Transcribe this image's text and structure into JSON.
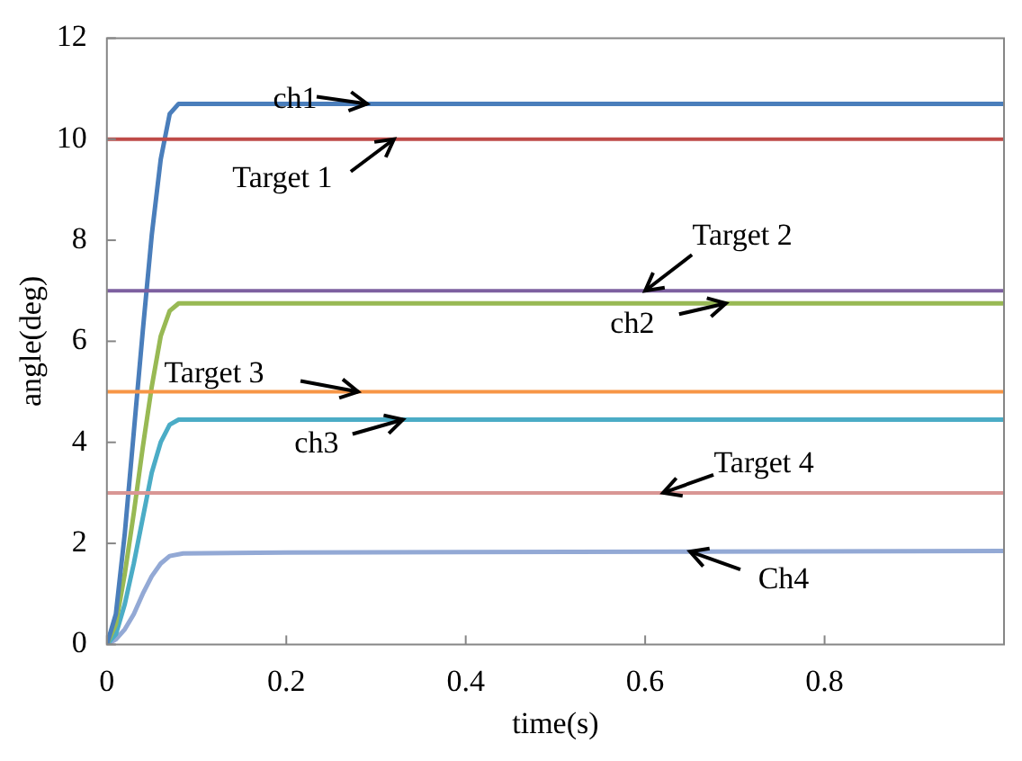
{
  "chart_data": {
    "type": "line",
    "xlabel": "time(s)",
    "ylabel": "angle(deg)",
    "xlim": [
      0,
      1
    ],
    "xticks": [
      0,
      0.2,
      0.4,
      0.6,
      0.8
    ],
    "ylim": [
      0,
      12
    ],
    "yticks": [
      0,
      2,
      4,
      6,
      8,
      10,
      12
    ],
    "grid": false,
    "legend": false,
    "marker": "none",
    "line_style": "solid",
    "series": [
      {
        "name": "ch1",
        "color": "#4a7ebb",
        "x": [
          0,
          0.01,
          0.02,
          0.03,
          0.04,
          0.05,
          0.06,
          0.07,
          0.08,
          0.1,
          1
        ],
        "values": [
          0,
          0.6,
          2.2,
          4.2,
          6.2,
          8.1,
          9.6,
          10.5,
          10.7,
          10.7,
          10.7
        ]
      },
      {
        "name": "ch2",
        "color": "#98b954",
        "x": [
          0,
          0.01,
          0.02,
          0.03,
          0.04,
          0.05,
          0.06,
          0.07,
          0.08,
          0.1,
          1
        ],
        "values": [
          0,
          0.4,
          1.4,
          2.6,
          3.9,
          5.1,
          6.1,
          6.6,
          6.75,
          6.75,
          6.75
        ]
      },
      {
        "name": "ch3",
        "color": "#4bacc6",
        "x": [
          0,
          0.01,
          0.02,
          0.03,
          0.04,
          0.05,
          0.06,
          0.07,
          0.08,
          0.1,
          1
        ],
        "values": [
          0,
          0.2,
          0.8,
          1.6,
          2.5,
          3.4,
          4.0,
          4.35,
          4.45,
          4.45,
          4.45
        ]
      },
      {
        "name": "Ch4",
        "color": "#93a9d5",
        "x": [
          0,
          0.01,
          0.02,
          0.03,
          0.04,
          0.05,
          0.06,
          0.07,
          0.085,
          0.2,
          1
        ],
        "values": [
          0,
          0.1,
          0.3,
          0.6,
          1.0,
          1.35,
          1.6,
          1.75,
          1.8,
          1.82,
          1.85
        ]
      }
    ],
    "ref_lines": [
      {
        "axis": "y",
        "value": 10,
        "label": "Target 1",
        "color": "#be4b48"
      },
      {
        "axis": "y",
        "value": 7,
        "label": "Target 2",
        "color": "#7d60a0"
      },
      {
        "axis": "y",
        "value": 5,
        "label": "Target 3",
        "color": "#f79646"
      },
      {
        "axis": "y",
        "value": 3,
        "label": "Target 4",
        "color": "#d99694"
      }
    ]
  }
}
